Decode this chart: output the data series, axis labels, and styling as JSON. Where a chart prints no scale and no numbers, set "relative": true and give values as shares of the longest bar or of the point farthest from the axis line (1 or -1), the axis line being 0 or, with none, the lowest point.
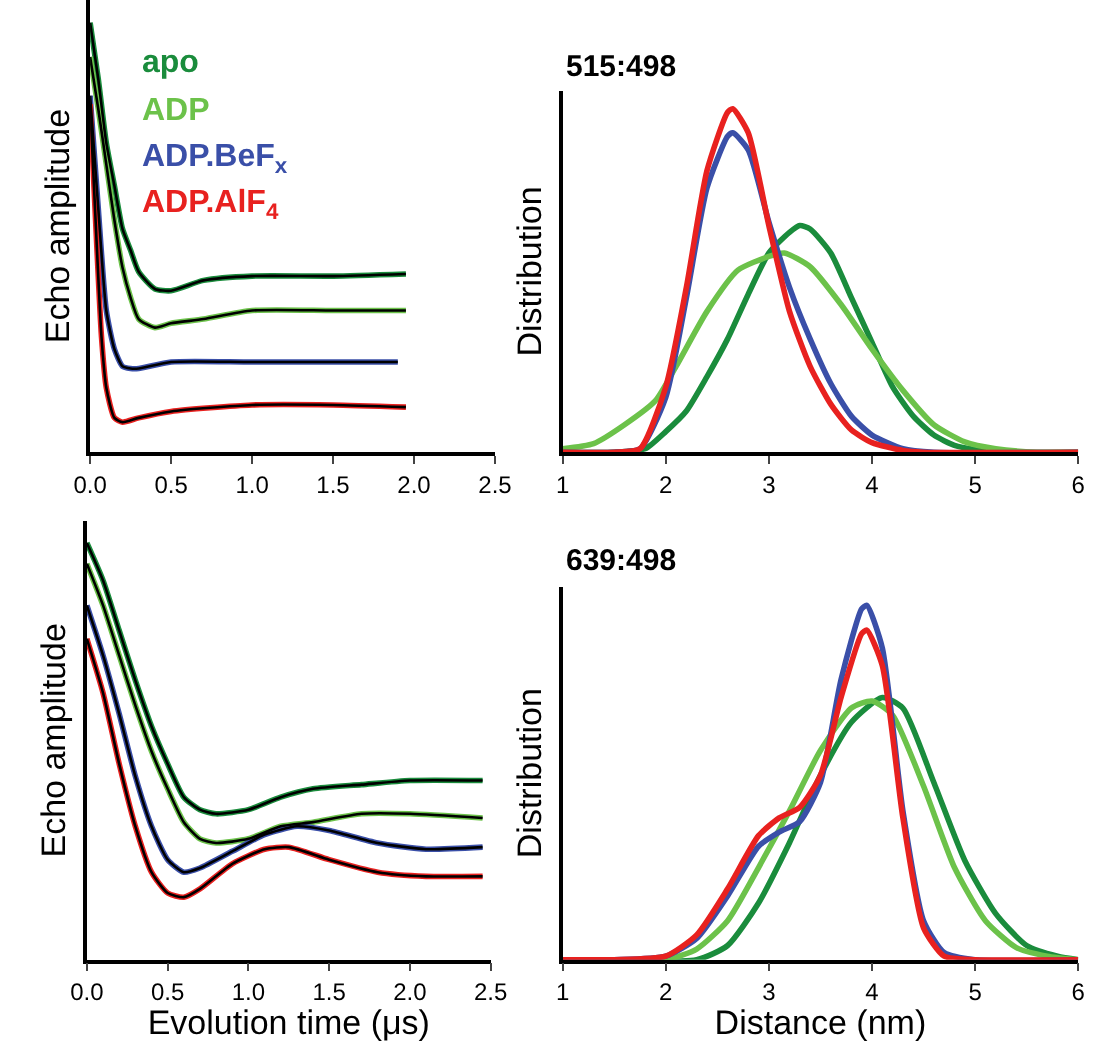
{
  "chart_data": [
    {
      "type": "line",
      "relative": true,
      "ylabel": "Echo amplitude",
      "xlim": [
        0,
        2.5
      ],
      "xticks": [
        {
          "value": 0,
          "label": "0.0"
        },
        {
          "value": 0.5,
          "label": "0.5"
        },
        {
          "value": 1,
          "label": "1.0"
        },
        {
          "value": 1.5,
          "label": "1.5"
        },
        {
          "value": 2,
          "label": "2.0"
        },
        {
          "value": 2.5,
          "label": "2.5"
        }
      ],
      "legend": false,
      "series": [
        {
          "name": "apo",
          "color": "#1a8c3c",
          "x": [
            0,
            0.05,
            0.1,
            0.15,
            0.2,
            0.25,
            0.3,
            0.4,
            0.5,
            0.7,
            1.0,
            1.5,
            1.95
          ],
          "values": [
            1.0,
            0.87,
            0.72,
            0.62,
            0.52,
            0.47,
            0.42,
            0.38,
            0.376,
            0.4,
            0.41,
            0.41,
            0.415
          ]
        },
        {
          "name": "ADP",
          "color": "#6cc24a",
          "x": [
            0,
            0.05,
            0.1,
            0.15,
            0.2,
            0.25,
            0.3,
            0.4,
            0.5,
            0.7,
            1.0,
            1.5,
            1.95
          ],
          "values": [
            0.92,
            0.8,
            0.67,
            0.54,
            0.43,
            0.36,
            0.31,
            0.29,
            0.3,
            0.31,
            0.33,
            0.33,
            0.33
          ]
        },
        {
          "name": "ADP.BeF$_{x}$",
          "color": "#3a4fa8",
          "x": [
            0,
            0.05,
            0.1,
            0.15,
            0.2,
            0.25,
            0.3,
            0.5,
            1.0,
            1.9
          ],
          "values": [
            0.83,
            0.57,
            0.33,
            0.24,
            0.2,
            0.195,
            0.195,
            0.21,
            0.21,
            0.21
          ]
        },
        {
          "name": "ADP.AlF$_{4}$",
          "color": "#e8211f",
          "x": [
            0,
            0.03,
            0.07,
            0.1,
            0.15,
            0.2,
            0.3,
            0.5,
            1.0,
            1.5,
            1.95
          ],
          "values": [
            0.81,
            0.57,
            0.27,
            0.15,
            0.08,
            0.07,
            0.08,
            0.095,
            0.11,
            0.11,
            0.105
          ]
        },
        {
          "color": "#000000",
          "x": [
            0,
            0.05,
            0.1,
            0.15,
            0.2,
            0.25,
            0.3,
            0.4,
            0.5,
            0.7,
            1.0,
            1.5,
            1.95
          ],
          "values": [
            1.0,
            0.87,
            0.72,
            0.62,
            0.52,
            0.47,
            0.42,
            0.38,
            0.376,
            0.4,
            0.41,
            0.41,
            0.415
          ]
        },
        {
          "color": "#000000",
          "x": [
            0,
            0.05,
            0.1,
            0.15,
            0.2,
            0.25,
            0.3,
            0.4,
            0.5,
            0.7,
            1.0,
            1.5,
            1.95
          ],
          "values": [
            0.92,
            0.8,
            0.67,
            0.54,
            0.43,
            0.36,
            0.31,
            0.29,
            0.3,
            0.31,
            0.33,
            0.33,
            0.33
          ]
        },
        {
          "color": "#000000",
          "x": [
            0,
            0.05,
            0.1,
            0.15,
            0.2,
            0.25,
            0.3,
            0.5,
            1.0,
            1.9
          ],
          "values": [
            0.83,
            0.57,
            0.33,
            0.24,
            0.2,
            0.195,
            0.195,
            0.21,
            0.21,
            0.21
          ]
        },
        {
          "color": "#000000",
          "x": [
            0,
            0.03,
            0.07,
            0.1,
            0.15,
            0.2,
            0.3,
            0.5,
            1.0,
            1.5,
            1.95
          ],
          "values": [
            0.81,
            0.57,
            0.27,
            0.15,
            0.08,
            0.07,
            0.08,
            0.095,
            0.11,
            0.11,
            0.105
          ]
        }
      ]
    },
    {
      "type": "line",
      "relative": true,
      "title": "515:498",
      "ylabel": "Distribution",
      "xlim": [
        1,
        6
      ],
      "xticks": [
        1,
        2,
        3,
        4,
        5,
        6
      ],
      "legend": false,
      "series": [
        {
          "color": "#1a8c3c",
          "x": [
            1,
            1.5,
            1.8,
            2.0,
            2.2,
            2.4,
            2.6,
            2.8,
            3.0,
            3.2,
            3.3,
            3.4,
            3.6,
            3.8,
            4.0,
            4.2,
            4.4,
            4.6,
            4.8,
            5.0,
            5.3,
            6
          ],
          "values": [
            0,
            0,
            0.01,
            0.06,
            0.12,
            0.22,
            0.33,
            0.46,
            0.58,
            0.64,
            0.66,
            0.65,
            0.58,
            0.45,
            0.32,
            0.19,
            0.105,
            0.05,
            0.02,
            0.008,
            0,
            0
          ]
        },
        {
          "color": "#6cc24a",
          "x": [
            1,
            1.3,
            1.6,
            1.9,
            2.1,
            2.4,
            2.7,
            3.0,
            3.15,
            3.4,
            3.7,
            4.0,
            4.3,
            4.6,
            4.9,
            5.2,
            5.6,
            6
          ],
          "values": [
            0.01,
            0.025,
            0.08,
            0.15,
            0.25,
            0.41,
            0.53,
            0.57,
            0.58,
            0.54,
            0.43,
            0.3,
            0.18,
            0.08,
            0.03,
            0.01,
            0,
            0
          ]
        },
        {
          "color": "#3a4fa8",
          "x": [
            1,
            1.5,
            1.75,
            2.0,
            2.2,
            2.4,
            2.6,
            2.65,
            2.8,
            3.0,
            3.2,
            3.4,
            3.6,
            3.8,
            4.0,
            4.3,
            4.6,
            6
          ],
          "values": [
            0,
            0,
            0.01,
            0.16,
            0.45,
            0.77,
            0.92,
            0.93,
            0.88,
            0.67,
            0.48,
            0.33,
            0.2,
            0.105,
            0.05,
            0.01,
            0,
            0
          ]
        },
        {
          "color": "#e8211f",
          "x": [
            1,
            1.5,
            1.75,
            2.0,
            2.2,
            2.4,
            2.6,
            2.65,
            2.8,
            3.0,
            3.2,
            3.4,
            3.6,
            3.8,
            4.0,
            4.3,
            4.5,
            6
          ],
          "values": [
            0,
            0,
            0.01,
            0.19,
            0.48,
            0.82,
            0.99,
            1.0,
            0.93,
            0.66,
            0.41,
            0.25,
            0.14,
            0.065,
            0.028,
            0.005,
            0,
            0
          ]
        }
      ]
    },
    {
      "type": "line",
      "relative": true,
      "xlabel": "Evolution time (μs)",
      "ylabel": "Echo amplitude",
      "xlim": [
        0,
        2.5
      ],
      "xticks": [
        {
          "value": 0,
          "label": "0.0"
        },
        {
          "value": 0.5,
          "label": "0.5"
        },
        {
          "value": 1,
          "label": "1.0"
        },
        {
          "value": 1.5,
          "label": "1.5"
        },
        {
          "value": 2,
          "label": "2.0"
        },
        {
          "value": 2.5,
          "label": "2.5"
        }
      ],
      "legend": false,
      "series": [
        {
          "color": "#1a8c3c",
          "x": [
            0,
            0.1,
            0.2,
            0.3,
            0.4,
            0.5,
            0.6,
            0.7,
            0.8,
            1.0,
            1.2,
            1.4,
            1.7,
            2.0,
            2.45
          ],
          "values": [
            1.0,
            0.91,
            0.79,
            0.67,
            0.56,
            0.47,
            0.39,
            0.36,
            0.35,
            0.36,
            0.39,
            0.41,
            0.42,
            0.43,
            0.43
          ]
        },
        {
          "color": "#6cc24a",
          "x": [
            0,
            0.1,
            0.2,
            0.3,
            0.4,
            0.5,
            0.6,
            0.7,
            0.8,
            1.0,
            1.2,
            1.4,
            1.7,
            2.0,
            2.45
          ],
          "values": [
            0.95,
            0.85,
            0.73,
            0.61,
            0.5,
            0.41,
            0.33,
            0.29,
            0.28,
            0.29,
            0.32,
            0.33,
            0.35,
            0.35,
            0.34
          ]
        },
        {
          "color": "#3a4fa8",
          "x": [
            0,
            0.1,
            0.2,
            0.3,
            0.4,
            0.5,
            0.6,
            0.7,
            0.9,
            1.1,
            1.3,
            1.5,
            1.8,
            2.1,
            2.45
          ],
          "values": [
            0.85,
            0.73,
            0.59,
            0.44,
            0.32,
            0.24,
            0.21,
            0.22,
            0.26,
            0.3,
            0.32,
            0.31,
            0.28,
            0.265,
            0.27
          ]
        },
        {
          "color": "#e8211f",
          "x": [
            0,
            0.1,
            0.2,
            0.3,
            0.4,
            0.5,
            0.6,
            0.7,
            0.9,
            1.1,
            1.25,
            1.5,
            1.8,
            2.1,
            2.45
          ],
          "values": [
            0.77,
            0.64,
            0.47,
            0.32,
            0.21,
            0.16,
            0.15,
            0.17,
            0.23,
            0.265,
            0.27,
            0.24,
            0.21,
            0.2,
            0.2
          ]
        },
        {
          "color": "#000000",
          "x": [
            0,
            0.1,
            0.2,
            0.3,
            0.4,
            0.5,
            0.6,
            0.7,
            0.8,
            1.0,
            1.2,
            1.4,
            1.7,
            2.0,
            2.45
          ],
          "values": [
            1.0,
            0.91,
            0.79,
            0.67,
            0.56,
            0.47,
            0.39,
            0.36,
            0.35,
            0.36,
            0.39,
            0.41,
            0.42,
            0.43,
            0.43
          ]
        },
        {
          "color": "#000000",
          "x": [
            0,
            0.1,
            0.2,
            0.3,
            0.4,
            0.5,
            0.6,
            0.7,
            0.8,
            1.0,
            1.2,
            1.4,
            1.7,
            2.0,
            2.45
          ],
          "values": [
            0.95,
            0.85,
            0.73,
            0.61,
            0.5,
            0.41,
            0.33,
            0.29,
            0.28,
            0.29,
            0.32,
            0.33,
            0.35,
            0.35,
            0.34
          ]
        },
        {
          "color": "#000000",
          "x": [
            0,
            0.1,
            0.2,
            0.3,
            0.4,
            0.5,
            0.6,
            0.7,
            0.9,
            1.1,
            1.3,
            1.5,
            1.8,
            2.1,
            2.45
          ],
          "values": [
            0.85,
            0.73,
            0.59,
            0.44,
            0.32,
            0.24,
            0.21,
            0.22,
            0.26,
            0.3,
            0.32,
            0.31,
            0.28,
            0.265,
            0.27
          ]
        },
        {
          "color": "#000000",
          "x": [
            0,
            0.1,
            0.2,
            0.3,
            0.4,
            0.5,
            0.6,
            0.7,
            0.9,
            1.1,
            1.25,
            1.5,
            1.8,
            2.1,
            2.45
          ],
          "values": [
            0.77,
            0.64,
            0.47,
            0.32,
            0.21,
            0.16,
            0.15,
            0.17,
            0.23,
            0.265,
            0.27,
            0.24,
            0.21,
            0.2,
            0.2
          ]
        }
      ]
    },
    {
      "type": "line",
      "relative": true,
      "title": "639:498",
      "xlabel": "Distance (nm)",
      "ylabel": "Distribution",
      "xlim": [
        1,
        6
      ],
      "xticks": [
        1,
        2,
        3,
        4,
        5,
        6
      ],
      "legend": false,
      "series": [
        {
          "color": "#1a8c3c",
          "x": [
            1,
            2.3,
            2.6,
            2.9,
            3.2,
            3.5,
            3.8,
            4.1,
            4.3,
            4.6,
            4.9,
            5.2,
            5.5,
            5.8,
            6
          ],
          "values": [
            0,
            0,
            0.04,
            0.16,
            0.33,
            0.52,
            0.67,
            0.74,
            0.71,
            0.5,
            0.28,
            0.13,
            0.04,
            0.01,
            0
          ]
        },
        {
          "color": "#6cc24a",
          "x": [
            1,
            2.0,
            2.3,
            2.6,
            2.9,
            3.2,
            3.5,
            3.8,
            4.0,
            4.2,
            4.5,
            4.8,
            5.1,
            5.4,
            5.7,
            6
          ],
          "values": [
            0,
            0,
            0.03,
            0.11,
            0.26,
            0.42,
            0.59,
            0.71,
            0.73,
            0.69,
            0.49,
            0.26,
            0.11,
            0.034,
            0.01,
            0
          ]
        },
        {
          "color": "#3a4fa8",
          "x": [
            1,
            1.5,
            2.0,
            2.3,
            2.6,
            2.9,
            3.1,
            3.3,
            3.5,
            3.7,
            3.9,
            3.95,
            4.1,
            4.3,
            4.5,
            4.7,
            5.0,
            6
          ],
          "values": [
            0,
            0,
            0.01,
            0.06,
            0.18,
            0.32,
            0.36,
            0.39,
            0.5,
            0.79,
            0.99,
            1.0,
            0.88,
            0.42,
            0.11,
            0.02,
            0,
            0
          ]
        },
        {
          "color": "#e8211f",
          "x": [
            1,
            1.5,
            2.0,
            2.3,
            2.6,
            2.9,
            3.1,
            3.3,
            3.5,
            3.7,
            3.9,
            3.95,
            4.1,
            4.3,
            4.5,
            4.7,
            5.0,
            6
          ],
          "values": [
            0,
            0,
            0.01,
            0.07,
            0.2,
            0.35,
            0.4,
            0.43,
            0.52,
            0.74,
            0.92,
            0.93,
            0.83,
            0.4,
            0.09,
            0.01,
            0,
            0
          ]
        }
      ]
    }
  ]
}
